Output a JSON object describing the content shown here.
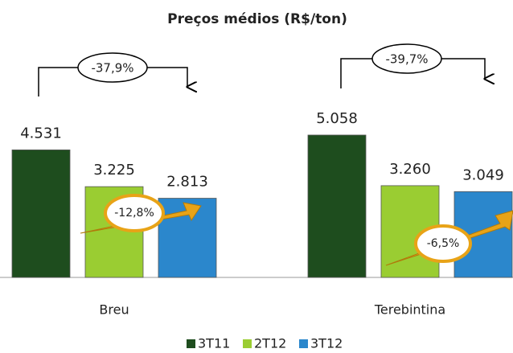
{
  "chart_data": {
    "type": "bar",
    "title": "Preços médios (R$/ton)",
    "categories": [
      "Breu",
      "Terebintina"
    ],
    "series": [
      {
        "name": "3T11",
        "color": "#1e4d1e",
        "values": [
          4531,
          5058
        ],
        "value_labels": [
          "4.531",
          "5.058"
        ]
      },
      {
        "name": "2T12",
        "color": "#9acd32",
        "values": [
          3225,
          3260
        ],
        "value_labels": [
          "3.225",
          "3.260"
        ]
      },
      {
        "name": "3T12",
        "color": "#2b87cc",
        "values": [
          2813,
          3049
        ],
        "value_labels": [
          "2.813",
          "3.049"
        ]
      }
    ],
    "annotations": [
      "-37,9%",
      "-12,8%",
      "-39,7%",
      "-6,5%"
    ]
  }
}
